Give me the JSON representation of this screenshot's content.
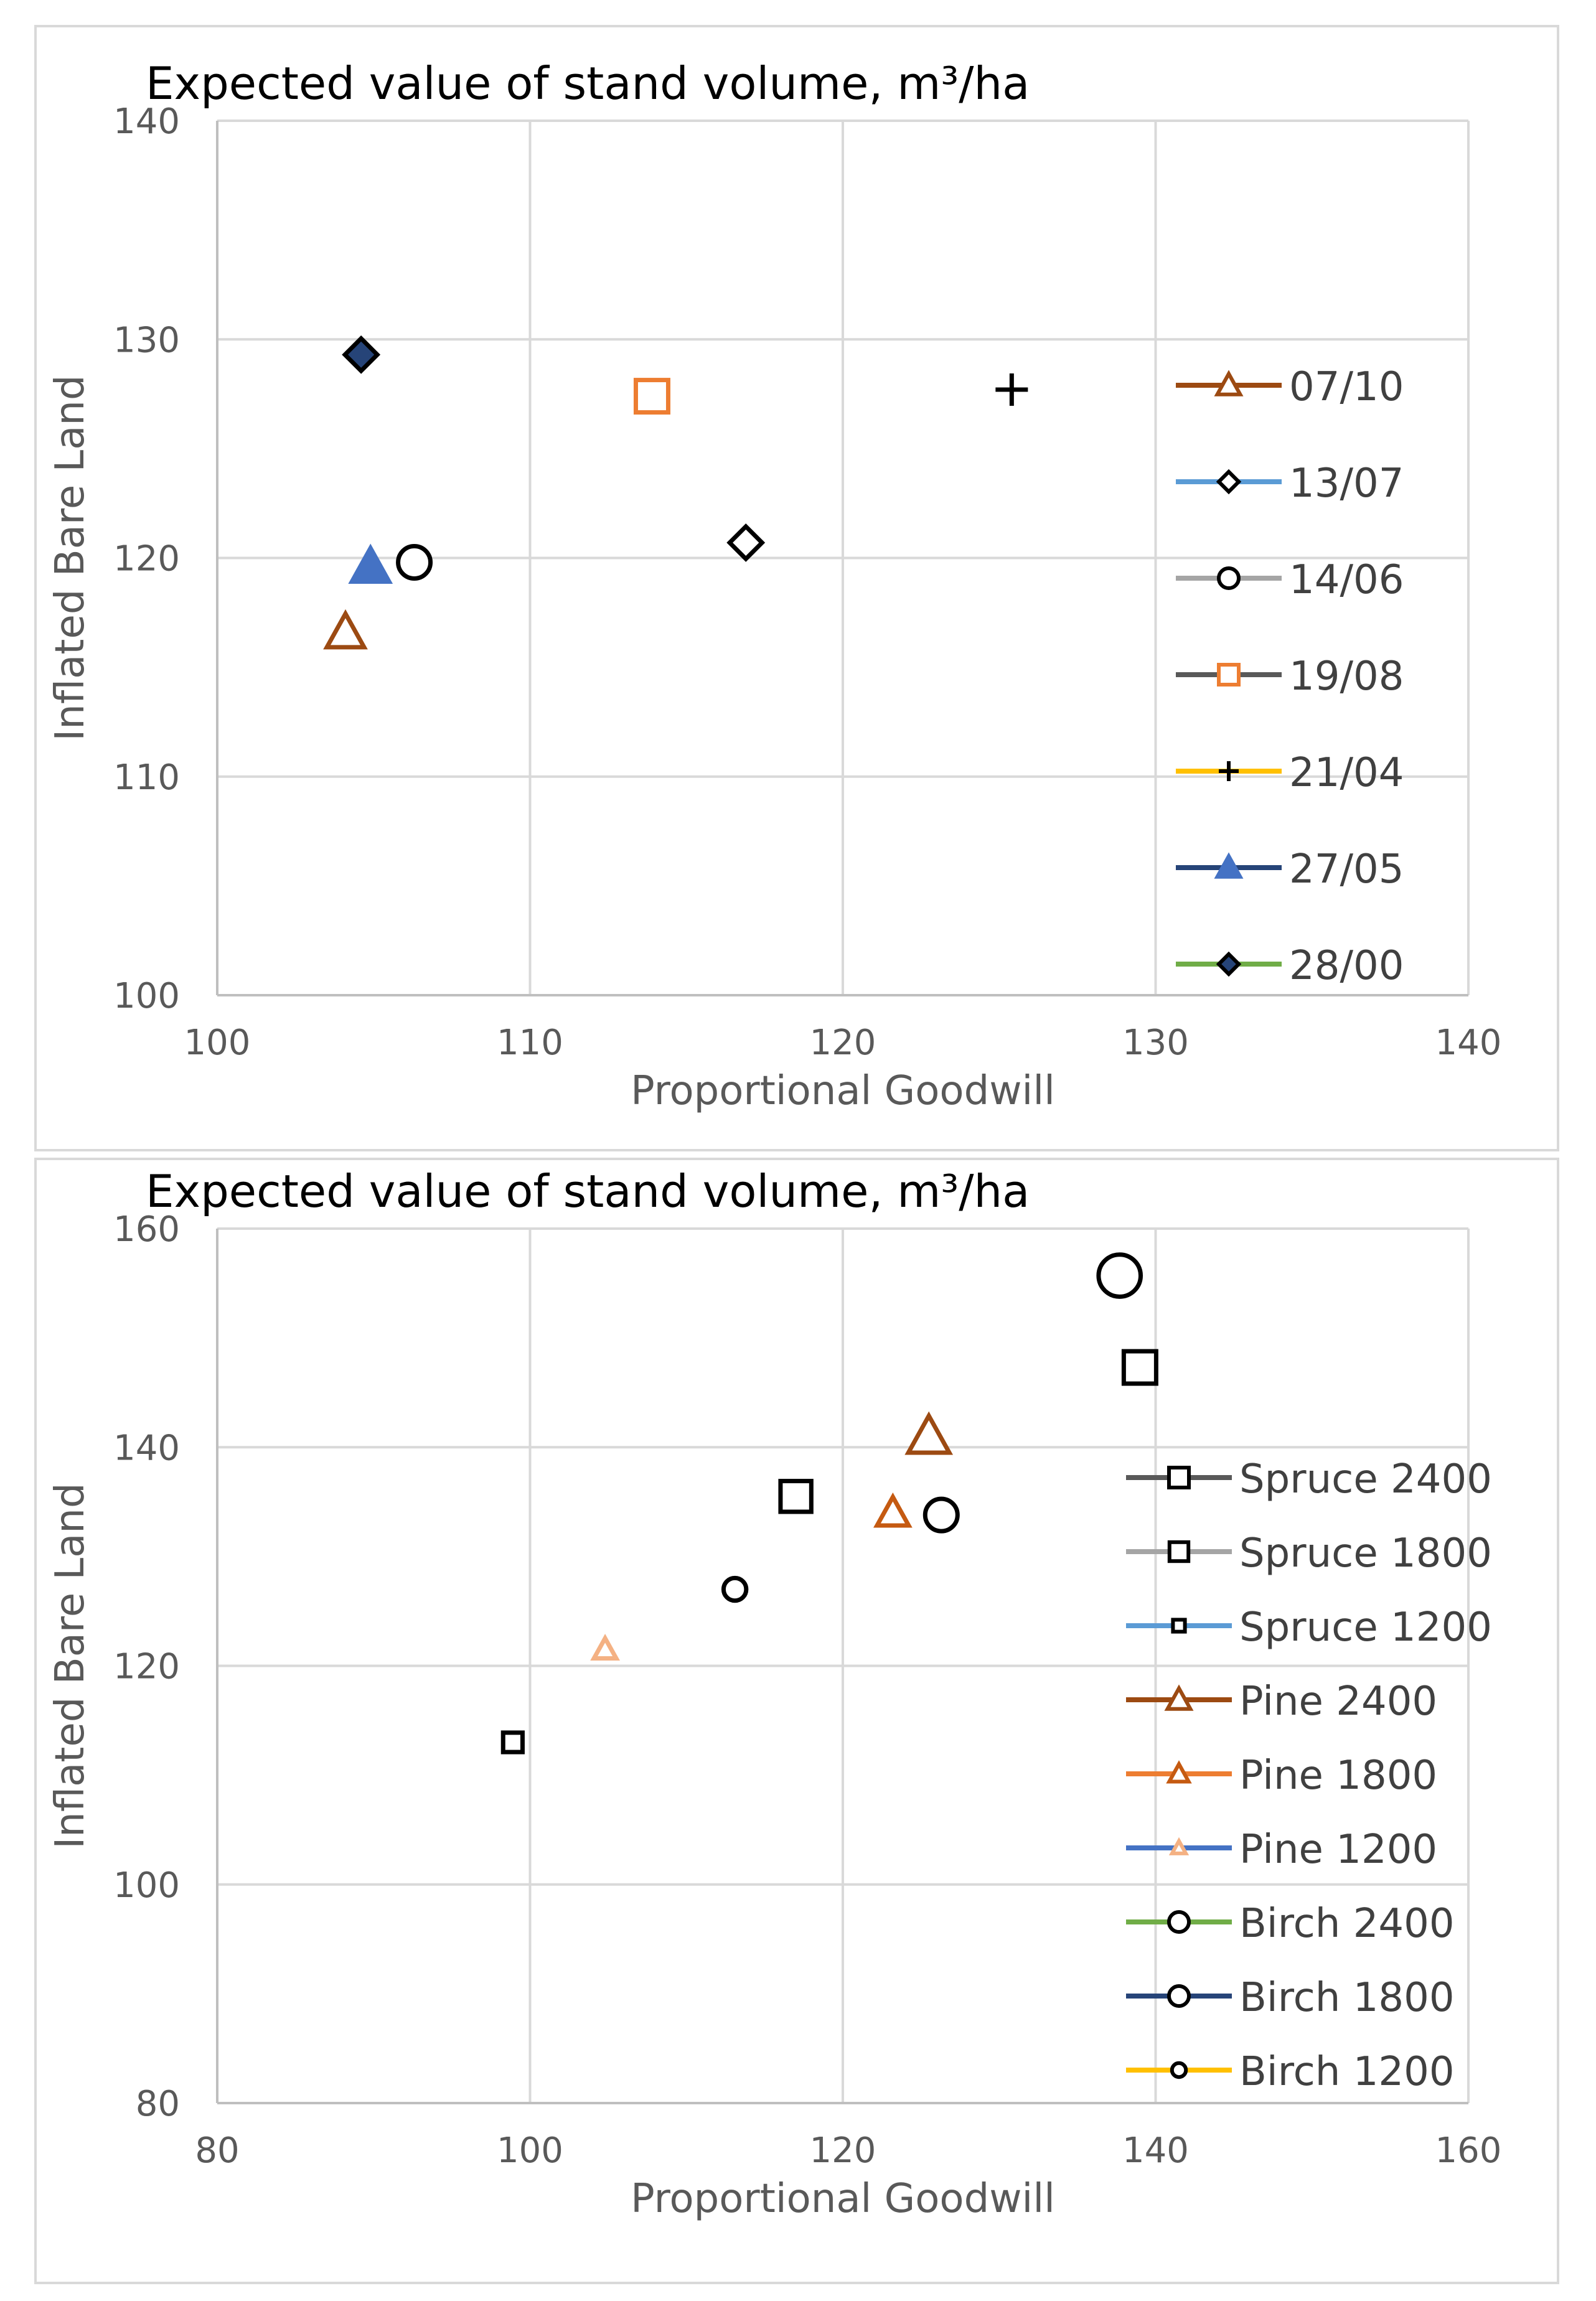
{
  "chart_data": [
    {
      "type": "scatter",
      "title": "Expected value of stand volume,  m³/ha",
      "xlabel": "Proportional Goodwill",
      "ylabel": "Inflated Bare Land",
      "xlim": [
        100,
        140
      ],
      "ylim": [
        100,
        140
      ],
      "xticks": [
        "100",
        "110",
        "120",
        "130",
        "140"
      ],
      "yticks": [
        "100",
        "110",
        "120",
        "130",
        "140"
      ],
      "grid": true,
      "legend_position": "right",
      "series": [
        {
          "name": "07/10",
          "marker": "triangle-open",
          "marker_color": "#9c4a12",
          "line_color": "#9c4a12",
          "size": 1.0,
          "points": [
            [
              104.1,
              116.6
            ]
          ]
        },
        {
          "name": "13/07",
          "marker": "diamond-open",
          "marker_color": "#000000",
          "line_color": "#5b9bd5",
          "size": 1.0,
          "points": [
            [
              116.9,
              120.7
            ]
          ]
        },
        {
          "name": "14/06",
          "marker": "circle-open",
          "marker_color": "#000000",
          "line_color": "#a5a5a5",
          "size": 1.0,
          "points": [
            [
              106.3,
              119.8
            ]
          ]
        },
        {
          "name": "19/08",
          "marker": "square-open",
          "marker_color": "#ed7d31",
          "line_color": "#595959",
          "size": 1.0,
          "points": [
            [
              113.9,
              127.4
            ]
          ]
        },
        {
          "name": "21/04",
          "marker": "plus",
          "marker_color": "#000000",
          "line_color": "#ffc000",
          "size": 1.0,
          "points": [
            [
              125.4,
              127.7
            ]
          ]
        },
        {
          "name": "27/05",
          "marker": "triangle-filled",
          "marker_color": "#4472c4",
          "line_color": "#264478",
          "size": 1.0,
          "points": [
            [
              104.9,
              119.6
            ]
          ]
        },
        {
          "name": "28/00",
          "marker": "diamond-filled",
          "marker_color": "#264478",
          "line_color": "#70ad47",
          "size": 1.0,
          "points": [
            [
              104.6,
              129.3
            ]
          ]
        }
      ]
    },
    {
      "type": "scatter",
      "title": "Expected value of stand volume,  m³/ha",
      "xlabel": "Proportional Goodwill",
      "ylabel": "Inflated Bare Land",
      "xlim": [
        80,
        160
      ],
      "ylim": [
        80,
        160
      ],
      "xticks": [
        "80",
        "100",
        "120",
        "140",
        "160"
      ],
      "yticks": [
        "80",
        "100",
        "120",
        "140",
        "160"
      ],
      "grid": true,
      "legend_position": "right",
      "series": [
        {
          "name": "Spruce 2400",
          "marker": "square-open",
          "marker_color": "#000000",
          "line_color": "#595959",
          "size": 1.0,
          "points": [
            [
              139.0,
              147.3
            ]
          ]
        },
        {
          "name": "Spruce 1800",
          "marker": "square-open",
          "marker_color": "#000000",
          "line_color": "#a5a5a5",
          "size": 0.95,
          "points": [
            [
              117.0,
              135.5
            ]
          ]
        },
        {
          "name": "Spruce 1200",
          "marker": "square-open",
          "marker_color": "#000000",
          "line_color": "#5b9bd5",
          "size": 0.6,
          "points": [
            [
              98.9,
              113.0
            ]
          ]
        },
        {
          "name": "Pine 2400",
          "marker": "triangle-open",
          "marker_color": "#9c4a12",
          "line_color": "#9c4a12",
          "size": 1.1,
          "points": [
            [
              125.5,
              141.0
            ]
          ]
        },
        {
          "name": "Pine 1800",
          "marker": "triangle-open",
          "marker_color": "#c55a11",
          "line_color": "#ed7d31",
          "size": 0.85,
          "points": [
            [
              123.2,
              134.0
            ]
          ]
        },
        {
          "name": "Pine 1200",
          "marker": "triangle-open",
          "marker_color": "#f4b183",
          "line_color": "#4472c4",
          "size": 0.6,
          "points": [
            [
              104.8,
              121.5
            ]
          ]
        },
        {
          "name": "Birch 2400",
          "marker": "circle-open",
          "marker_color": "#000000",
          "line_color": "#70ad47",
          "size": 1.3,
          "points": [
            [
              137.7,
              155.7
            ]
          ]
        },
        {
          "name": "Birch 1800",
          "marker": "circle-open",
          "marker_color": "#000000",
          "line_color": "#264478",
          "size": 1.0,
          "points": [
            [
              126.3,
              133.8
            ]
          ]
        },
        {
          "name": "Birch 1200",
          "marker": "circle-open",
          "marker_color": "#000000",
          "line_color": "#ffc000",
          "size": 0.7,
          "points": [
            [
              113.1,
              127.0
            ]
          ]
        }
      ]
    }
  ]
}
